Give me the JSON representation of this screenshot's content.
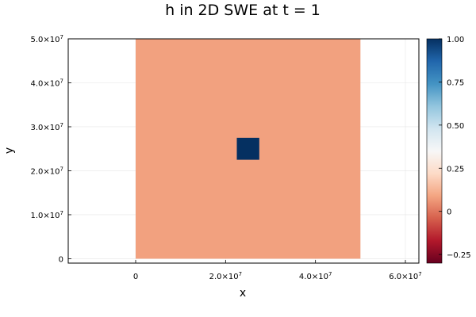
{
  "chart_data": {
    "type": "heatmap",
    "title": "h in 2D SWE at t = 1",
    "xlabel": "x",
    "ylabel": "y",
    "xlim": [
      -15000000,
      63000000
    ],
    "ylim": [
      -1000000,
      50000000
    ],
    "grid": true,
    "x_ticks": [
      {
        "value": 0,
        "label": "0"
      },
      {
        "value": 20000000,
        "label": "2.0×10",
        "exp": "7"
      },
      {
        "value": 40000000,
        "label": "4.0×10",
        "exp": "7"
      },
      {
        "value": 60000000,
        "label": "6.0×10",
        "exp": "7"
      }
    ],
    "y_ticks": [
      {
        "value": 0,
        "label": "0"
      },
      {
        "value": 10000000,
        "label": "1.0×10",
        "exp": "7"
      },
      {
        "value": 20000000,
        "label": "2.0×10",
        "exp": "7"
      },
      {
        "value": 30000000,
        "label": "3.0×10",
        "exp": "7"
      },
      {
        "value": 40000000,
        "label": "4.0×10",
        "exp": "7"
      },
      {
        "value": 50000000,
        "label": "5.0×10",
        "exp": "7"
      }
    ],
    "cells": [
      {
        "x0": 0,
        "x1": 50000000,
        "y0": 0,
        "y1": 50000000,
        "value": 0,
        "color": "#f2a17f"
      },
      {
        "x0": 22500000,
        "x1": 27500000,
        "y0": 22500000,
        "y1": 27500000,
        "value": 1,
        "color": "#053061"
      }
    ],
    "colorbar": {
      "min": -0.3,
      "max": 1.0,
      "colormap": "RdBu",
      "stops": [
        "#67001f",
        "#b2182b",
        "#d6604d",
        "#f4a582",
        "#fddbc7",
        "#f7f7f7",
        "#d1e5f0",
        "#92c5de",
        "#4393c3",
        "#2166ac",
        "#053061"
      ],
      "ticks": [
        {
          "value": -0.25,
          "label": "−0.25"
        },
        {
          "value": 0,
          "label": "0"
        },
        {
          "value": 0.25,
          "label": "0.25"
        },
        {
          "value": 0.5,
          "label": "0.50"
        },
        {
          "value": 0.75,
          "label": "0.75"
        },
        {
          "value": 1.0,
          "label": "1.00"
        }
      ]
    }
  }
}
